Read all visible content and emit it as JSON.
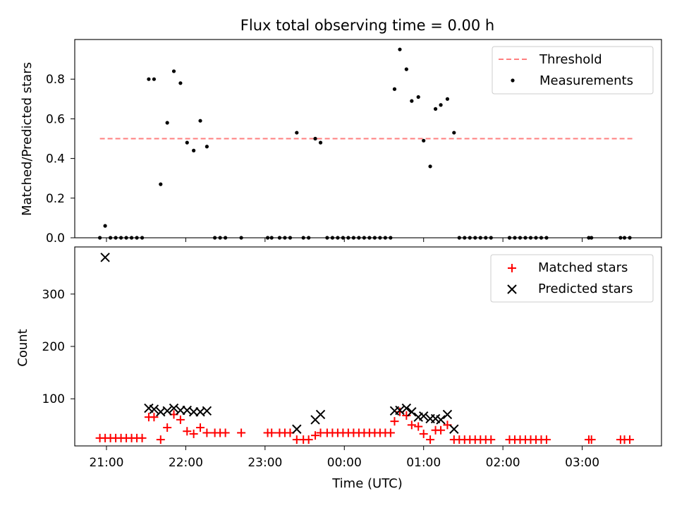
{
  "chart_data": [
    {
      "type": "scatter",
      "title": "Flux total observing time = 0.00 h",
      "xlabel": "",
      "ylabel": "Matched/Predicted stars",
      "xlim": [
        "20:36",
        "04:00"
      ],
      "ylim": [
        0.0,
        1.0
      ],
      "yticks": [
        0.0,
        0.2,
        0.4,
        0.6,
        0.8
      ],
      "ytick_labels": [
        "0.0",
        "0.2",
        "0.4",
        "0.6",
        "0.8"
      ],
      "grid": false,
      "legend": "top-right",
      "series": [
        {
          "name": "Threshold",
          "kind": "dashed-line",
          "color": "#ff7f7f",
          "x": [
            "20:55",
            "03:39"
          ],
          "y": [
            0.5,
            0.5
          ]
        },
        {
          "name": "Measurements",
          "kind": "dots",
          "color": "#000000",
          "points": [
            [
              "20:55",
              0.0
            ],
            [
              "20:59",
              0.06
            ],
            [
              "21:03",
              0.0
            ],
            [
              "21:07",
              0.0
            ],
            [
              "21:11",
              0.0
            ],
            [
              "21:15",
              0.0
            ],
            [
              "21:19",
              0.0
            ],
            [
              "21:23",
              0.0
            ],
            [
              "21:27",
              0.0
            ],
            [
              "21:32",
              0.8
            ],
            [
              "21:36",
              0.8
            ],
            [
              "21:41",
              0.27
            ],
            [
              "21:46",
              0.58
            ],
            [
              "21:51",
              0.84
            ],
            [
              "21:56",
              0.78
            ],
            [
              "22:01",
              0.48
            ],
            [
              "22:06",
              0.44
            ],
            [
              "22:11",
              0.59
            ],
            [
              "22:16",
              0.46
            ],
            [
              "22:22",
              0.0
            ],
            [
              "22:26",
              0.0
            ],
            [
              "22:30",
              0.0
            ],
            [
              "22:42",
              0.0
            ],
            [
              "23:02",
              0.0
            ],
            [
              "23:05",
              0.0
            ],
            [
              "23:11",
              0.0
            ],
            [
              "23:15",
              0.0
            ],
            [
              "23:19",
              0.0
            ],
            [
              "23:24",
              0.53
            ],
            [
              "23:29",
              0.0
            ],
            [
              "23:33",
              0.0
            ],
            [
              "23:38",
              0.5
            ],
            [
              "23:42",
              0.48
            ],
            [
              "23:47",
              0.0
            ],
            [
              "23:51",
              0.0
            ],
            [
              "23:55",
              0.0
            ],
            [
              "23:59",
              0.0
            ],
            [
              "00:03",
              0.0
            ],
            [
              "00:07",
              0.0
            ],
            [
              "00:11",
              0.0
            ],
            [
              "00:15",
              0.0
            ],
            [
              "00:19",
              0.0
            ],
            [
              "00:23",
              0.0
            ],
            [
              "00:27",
              0.0
            ],
            [
              "00:31",
              0.0
            ],
            [
              "00:35",
              0.0
            ],
            [
              "00:38",
              0.75
            ],
            [
              "00:42",
              0.95
            ],
            [
              "00:47",
              0.85
            ],
            [
              "00:51",
              0.69
            ],
            [
              "00:56",
              0.71
            ],
            [
              "01:00",
              0.49
            ],
            [
              "01:05",
              0.36
            ],
            [
              "01:09",
              0.65
            ],
            [
              "01:13",
              0.67
            ],
            [
              "01:18",
              0.7
            ],
            [
              "01:23",
              0.53
            ],
            [
              "01:27",
              0.0
            ],
            [
              "01:31",
              0.0
            ],
            [
              "01:35",
              0.0
            ],
            [
              "01:39",
              0.0
            ],
            [
              "01:43",
              0.0
            ],
            [
              "01:47",
              0.0
            ],
            [
              "01:51",
              0.0
            ],
            [
              "02:05",
              0.0
            ],
            [
              "02:09",
              0.0
            ],
            [
              "02:13",
              0.0
            ],
            [
              "02:17",
              0.0
            ],
            [
              "02:21",
              0.0
            ],
            [
              "02:25",
              0.0
            ],
            [
              "02:29",
              0.0
            ],
            [
              "02:33",
              0.0
            ],
            [
              "03:05",
              0.0
            ],
            [
              "03:07",
              0.0
            ],
            [
              "03:29",
              0.0
            ],
            [
              "03:32",
              0.0
            ],
            [
              "03:36",
              0.0
            ]
          ]
        }
      ]
    },
    {
      "type": "scatter",
      "title": "",
      "xlabel": "Time (UTC)",
      "ylabel": "Count",
      "xlim": [
        "20:36",
        "04:00"
      ],
      "xticks": [
        "21:00",
        "22:00",
        "23:00",
        "00:00",
        "01:00",
        "02:00",
        "03:00"
      ],
      "ylim": [
        10,
        390
      ],
      "yticks": [
        100,
        200,
        300
      ],
      "ytick_labels": [
        "100",
        "200",
        "300"
      ],
      "grid": false,
      "legend": "top-right",
      "series": [
        {
          "name": "Matched stars",
          "kind": "plus",
          "color": "#ff0000",
          "points": [
            [
              "20:55",
              25
            ],
            [
              "20:59",
              25
            ],
            [
              "21:03",
              25
            ],
            [
              "21:07",
              25
            ],
            [
              "21:11",
              25
            ],
            [
              "21:15",
              25
            ],
            [
              "21:19",
              25
            ],
            [
              "21:23",
              25
            ],
            [
              "21:27",
              25
            ],
            [
              "21:32",
              65
            ],
            [
              "21:36",
              65
            ],
            [
              "21:41",
              22
            ],
            [
              "21:46",
              45
            ],
            [
              "21:51",
              70
            ],
            [
              "21:56",
              60
            ],
            [
              "22:01",
              38
            ],
            [
              "22:06",
              33
            ],
            [
              "22:11",
              45
            ],
            [
              "22:16",
              35
            ],
            [
              "22:22",
              35
            ],
            [
              "22:26",
              35
            ],
            [
              "22:30",
              35
            ],
            [
              "22:42",
              35
            ],
            [
              "23:02",
              35
            ],
            [
              "23:05",
              35
            ],
            [
              "23:11",
              35
            ],
            [
              "23:15",
              35
            ],
            [
              "23:19",
              35
            ],
            [
              "23:24",
              22
            ],
            [
              "23:29",
              22
            ],
            [
              "23:33",
              22
            ],
            [
              "23:38",
              30
            ],
            [
              "23:42",
              35
            ],
            [
              "23:47",
              35
            ],
            [
              "23:51",
              35
            ],
            [
              "23:55",
              35
            ],
            [
              "23:59",
              35
            ],
            [
              "00:03",
              35
            ],
            [
              "00:07",
              35
            ],
            [
              "00:11",
              35
            ],
            [
              "00:15",
              35
            ],
            [
              "00:19",
              35
            ],
            [
              "00:23",
              35
            ],
            [
              "00:27",
              35
            ],
            [
              "00:31",
              35
            ],
            [
              "00:35",
              35
            ],
            [
              "00:38",
              57
            ],
            [
              "00:42",
              75
            ],
            [
              "00:47",
              68
            ],
            [
              "00:51",
              50
            ],
            [
              "00:56",
              47
            ],
            [
              "01:00",
              33
            ],
            [
              "01:05",
              22
            ],
            [
              "01:09",
              40
            ],
            [
              "01:13",
              40
            ],
            [
              "01:18",
              50
            ],
            [
              "01:23",
              22
            ],
            [
              "01:27",
              22
            ],
            [
              "01:31",
              22
            ],
            [
              "01:35",
              22
            ],
            [
              "01:39",
              22
            ],
            [
              "01:43",
              22
            ],
            [
              "01:47",
              22
            ],
            [
              "01:51",
              22
            ],
            [
              "02:05",
              22
            ],
            [
              "02:09",
              22
            ],
            [
              "02:13",
              22
            ],
            [
              "02:17",
              22
            ],
            [
              "02:21",
              22
            ],
            [
              "02:25",
              22
            ],
            [
              "02:29",
              22
            ],
            [
              "02:33",
              22
            ],
            [
              "03:05",
              22
            ],
            [
              "03:07",
              22
            ],
            [
              "03:29",
              22
            ],
            [
              "03:32",
              22
            ],
            [
              "03:36",
              22
            ]
          ]
        },
        {
          "name": "Predicted stars",
          "kind": "x",
          "color": "#000000",
          "points": [
            [
              "20:59",
              370
            ],
            [
              "21:32",
              82
            ],
            [
              "21:36",
              80
            ],
            [
              "21:41",
              75
            ],
            [
              "21:46",
              77
            ],
            [
              "21:51",
              82
            ],
            [
              "21:56",
              78
            ],
            [
              "22:01",
              78
            ],
            [
              "22:06",
              75
            ],
            [
              "22:11",
              75
            ],
            [
              "22:16",
              77
            ],
            [
              "23:24",
              42
            ],
            [
              "23:38",
              60
            ],
            [
              "23:42",
              70
            ],
            [
              "00:38",
              77
            ],
            [
              "00:42",
              78
            ],
            [
              "00:47",
              82
            ],
            [
              "00:51",
              75
            ],
            [
              "00:56",
              65
            ],
            [
              "01:00",
              67
            ],
            [
              "01:05",
              62
            ],
            [
              "01:09",
              62
            ],
            [
              "01:13",
              60
            ],
            [
              "01:18",
              70
            ],
            [
              "01:23",
              42
            ]
          ]
        }
      ]
    }
  ]
}
